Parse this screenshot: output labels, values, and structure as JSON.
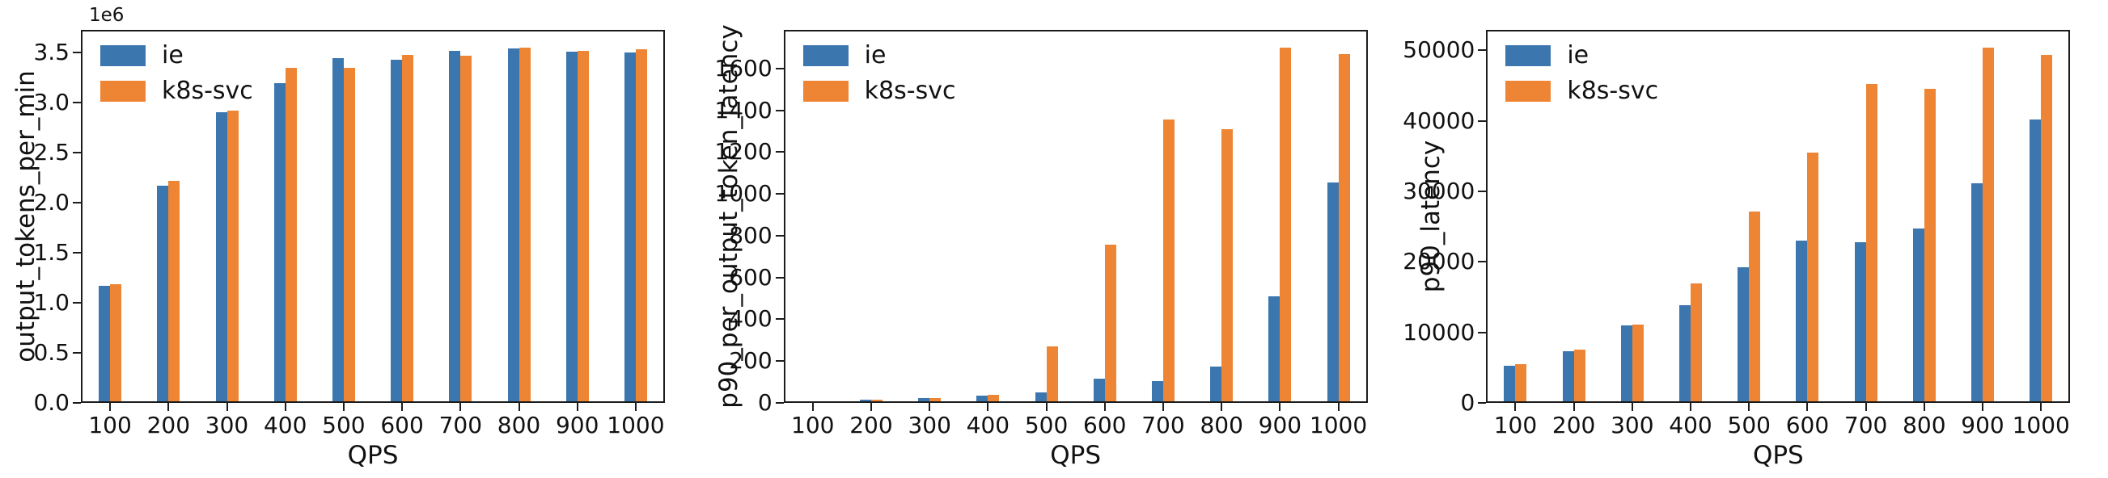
{
  "figure": {
    "background": "#ffffff"
  },
  "colors": {
    "ie": "#3b76af",
    "k8s-svc": "#ee8534",
    "axis": "#1c1c1c",
    "text": "#111111"
  },
  "chart_data": [
    {
      "type": "bar",
      "title": "",
      "xlabel": "QPS",
      "ylabel": "output_tokens_per_min",
      "offset_text": "1e6",
      "grid": false,
      "legend_position": "upper left",
      "categories": [
        100,
        200,
        300,
        400,
        500,
        600,
        700,
        800,
        900,
        1000
      ],
      "series": [
        {
          "name": "ie",
          "color": "#3b76af",
          "values": [
            1170000,
            2170000,
            2910000,
            3200000,
            3450000,
            3430000,
            3520000,
            3545000,
            3510000,
            3505000
          ]
        },
        {
          "name": "k8s-svc",
          "color": "#ee8534",
          "values": [
            1190000,
            2220000,
            2920000,
            3350000,
            3350000,
            3480000,
            3470000,
            3550000,
            3520000,
            3540000
          ]
        }
      ],
      "ylim": [
        0,
        3730000
      ],
      "yticks": {
        "values": [
          0,
          500000,
          1000000,
          1500000,
          2000000,
          2500000,
          3000000,
          3500000
        ],
        "labels": [
          "0.0",
          "0.5",
          "1.0",
          "1.5",
          "2.0",
          "2.5",
          "3.0",
          "3.5"
        ]
      }
    },
    {
      "type": "bar",
      "title": "",
      "xlabel": "QPS",
      "ylabel": "p90_per_output_token_latency",
      "offset_text": "",
      "grid": false,
      "legend_position": "upper left",
      "categories": [
        100,
        200,
        300,
        400,
        500,
        600,
        700,
        800,
        900,
        1000
      ],
      "series": [
        {
          "name": "ie",
          "color": "#3b76af",
          "values": [
            8,
            16,
            22,
            33,
            50,
            116,
            105,
            175,
            510,
            1055
          ]
        },
        {
          "name": "k8s-svc",
          "color": "#ee8534",
          "values": [
            8,
            16,
            23,
            38,
            270,
            756,
            1355,
            1310,
            1700,
            1670
          ]
        }
      ],
      "ylim": [
        0,
        1785
      ],
      "yticks": {
        "values": [
          0,
          200,
          400,
          600,
          800,
          1000,
          1200,
          1400,
          1600
        ],
        "labels": [
          "0",
          "200",
          "400",
          "600",
          "800",
          "1000",
          "1200",
          "1400",
          "1600"
        ]
      }
    },
    {
      "type": "bar",
      "title": "",
      "xlabel": "QPS",
      "ylabel": "p90_latency",
      "offset_text": "",
      "grid": false,
      "legend_position": "upper left",
      "categories": [
        100,
        200,
        300,
        400,
        500,
        600,
        700,
        800,
        900,
        1000
      ],
      "series": [
        {
          "name": "ie",
          "color": "#3b76af",
          "values": [
            5300,
            7300,
            11000,
            13900,
            19200,
            23000,
            22800,
            24700,
            31200,
            40200
          ]
        },
        {
          "name": "k8s-svc",
          "color": "#ee8534",
          "values": [
            5450,
            7600,
            11100,
            16900,
            27100,
            35500,
            45200,
            44600,
            50400,
            49400
          ]
        }
      ],
      "ylim": [
        0,
        52920
      ],
      "yticks": {
        "values": [
          0,
          10000,
          20000,
          30000,
          40000,
          50000
        ],
        "labels": [
          "0",
          "10000",
          "20000",
          "30000",
          "40000",
          "50000"
        ]
      }
    }
  ]
}
